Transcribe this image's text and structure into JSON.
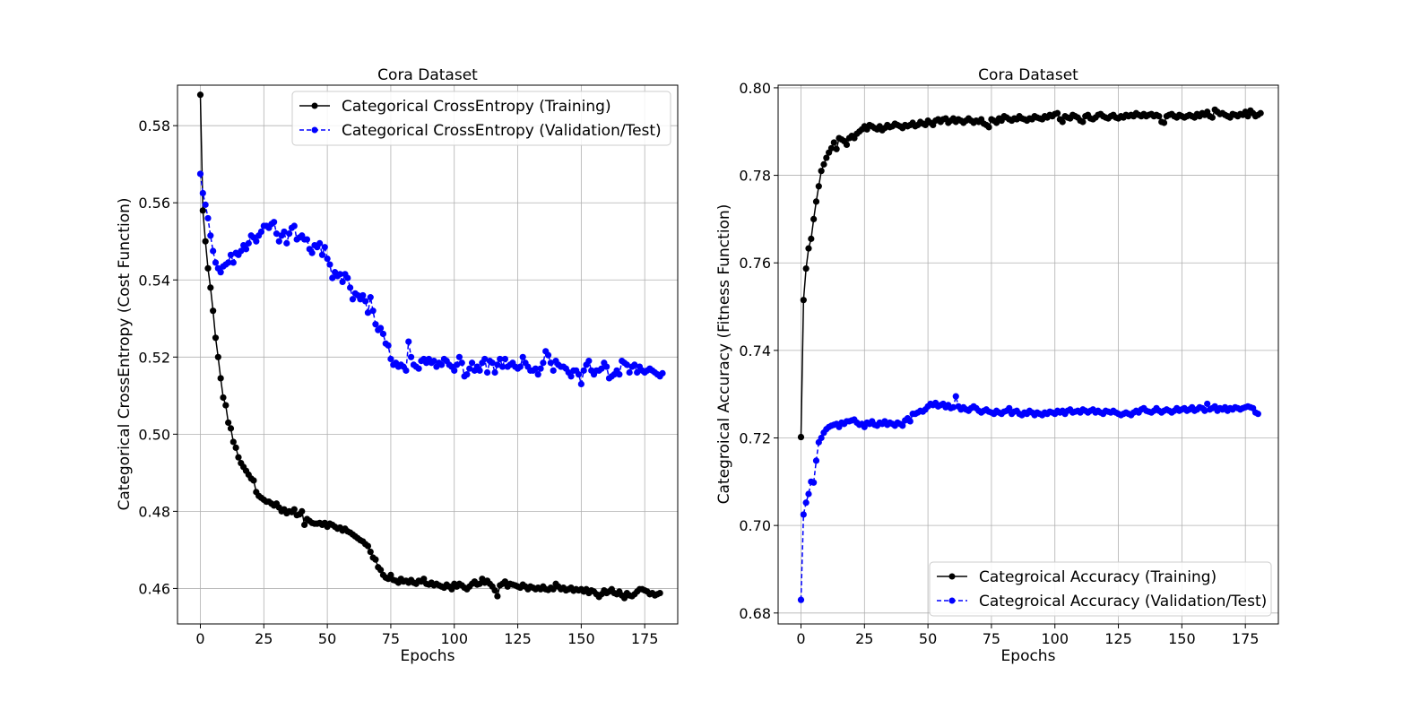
{
  "chart_data": [
    {
      "type": "line",
      "title": "Cora Dataset",
      "xlabel": "Epochs",
      "ylabel": "Categorical CrossEntropy (Cost Function)",
      "xlim": [
        -9,
        188
      ],
      "ylim": [
        0.4508,
        0.5905
      ],
      "xticks": [
        0,
        25,
        50,
        75,
        100,
        125,
        150,
        175
      ],
      "xtick_labels": [
        "0",
        "25",
        "50",
        "75",
        "100",
        "125",
        "150",
        "175"
      ],
      "yticks": [
        0.46,
        0.48,
        0.5,
        0.52,
        0.54,
        0.56,
        0.58
      ],
      "ytick_labels": [
        "0.46",
        "0.48",
        "0.50",
        "0.52",
        "0.54",
        "0.56",
        "0.58"
      ],
      "grid": true,
      "legend_position": "top-right",
      "series": [
        {
          "name": "Categorical CrossEntropy (Training)",
          "color": "#000000",
          "linestyle": "solid",
          "marker": "circle",
          "x0": 0,
          "values": [
            0.588,
            0.558,
            0.55,
            0.543,
            0.538,
            0.532,
            0.525,
            0.52,
            0.5145,
            0.5095,
            0.5075,
            0.503,
            0.5015,
            0.498,
            0.4965,
            0.494,
            0.4925,
            0.4915,
            0.4905,
            0.4895,
            0.4885,
            0.488,
            0.485,
            0.484,
            0.4835,
            0.483,
            0.4825,
            0.4825,
            0.482,
            0.4815,
            0.482,
            0.481,
            0.48,
            0.4805,
            0.4795,
            0.48,
            0.4798,
            0.4805,
            0.479,
            0.4792,
            0.48,
            0.4765,
            0.478,
            0.4775,
            0.477,
            0.4768,
            0.4768,
            0.477,
            0.4765,
            0.477,
            0.476,
            0.4768,
            0.4765,
            0.476,
            0.4755,
            0.4758,
            0.475,
            0.4755,
            0.4748,
            0.4745,
            0.474,
            0.4735,
            0.473,
            0.4725,
            0.4722,
            0.4715,
            0.471,
            0.4695,
            0.468,
            0.4675,
            0.4655,
            0.4648,
            0.4635,
            0.4628,
            0.4625,
            0.4635,
            0.4622,
            0.462,
            0.4615,
            0.4625,
            0.4618,
            0.462,
            0.4615,
            0.4622,
            0.4615,
            0.4612,
            0.462,
            0.4618,
            0.4625,
            0.4612,
            0.461,
            0.4615,
            0.4608,
            0.4612,
            0.4608,
            0.4605,
            0.4602,
            0.461,
            0.4605,
            0.4598,
            0.4612,
            0.4605,
            0.4612,
            0.4608,
            0.4602,
            0.4598,
            0.4605,
            0.4612,
            0.4618,
            0.461,
            0.4612,
            0.4625,
            0.4615,
            0.462,
            0.4612,
            0.4605,
            0.4595,
            0.458,
            0.4608,
            0.4612,
            0.4618,
            0.4605,
            0.4612,
            0.461,
            0.4608,
            0.4605,
            0.4602,
            0.461,
            0.4605,
            0.4598,
            0.4605,
            0.4602,
            0.4598,
            0.4602,
            0.4598,
            0.4605,
            0.4598,
            0.4596,
            0.4602,
            0.4598,
            0.4612,
            0.4605,
            0.4598,
            0.4602,
            0.4595,
            0.4598,
            0.4602,
            0.4594,
            0.4598,
            0.4595,
            0.4598,
            0.4592,
            0.4598,
            0.4588,
            0.4595,
            0.4592,
            0.4585,
            0.4578,
            0.4585,
            0.4595,
            0.4588,
            0.4592,
            0.4598,
            0.4588,
            0.4585,
            0.4592,
            0.4582,
            0.4575,
            0.4588,
            0.4582,
            0.458,
            0.4585,
            0.4592,
            0.4598,
            0.4598,
            0.4595,
            0.4592,
            0.4585,
            0.4588,
            0.4582,
            0.4585,
            0.4588
          ]
        },
        {
          "name": "Categorical CrossEntropy (Validation/Test)",
          "color": "#0000ff",
          "linestyle": "dashed",
          "marker": "circle",
          "x0": 0,
          "values": [
            0.5675,
            0.5625,
            0.5595,
            0.556,
            0.5515,
            0.5475,
            0.5445,
            0.543,
            0.542,
            0.5435,
            0.544,
            0.5445,
            0.5465,
            0.5445,
            0.547,
            0.5465,
            0.5475,
            0.549,
            0.548,
            0.5495,
            0.5515,
            0.551,
            0.55,
            0.5515,
            0.5525,
            0.554,
            0.554,
            0.5535,
            0.5545,
            0.555,
            0.552,
            0.55,
            0.5515,
            0.5525,
            0.5495,
            0.552,
            0.5535,
            0.554,
            0.5505,
            0.551,
            0.5515,
            0.5505,
            0.5505,
            0.548,
            0.547,
            0.549,
            0.5485,
            0.5495,
            0.5465,
            0.5485,
            0.5455,
            0.544,
            0.5405,
            0.542,
            0.541,
            0.5415,
            0.5395,
            0.5415,
            0.5405,
            0.538,
            0.535,
            0.5365,
            0.536,
            0.535,
            0.536,
            0.5345,
            0.5315,
            0.5355,
            0.532,
            0.5285,
            0.527,
            0.5275,
            0.526,
            0.5235,
            0.523,
            0.5195,
            0.518,
            0.5185,
            0.5175,
            0.518,
            0.5175,
            0.5165,
            0.524,
            0.52,
            0.518,
            0.5175,
            0.517,
            0.519,
            0.5195,
            0.5185,
            0.5195,
            0.5185,
            0.519,
            0.5175,
            0.5185,
            0.518,
            0.5195,
            0.519,
            0.518,
            0.5175,
            0.5165,
            0.518,
            0.52,
            0.5185,
            0.515,
            0.5155,
            0.517,
            0.5185,
            0.5165,
            0.5175,
            0.5165,
            0.5185,
            0.5195,
            0.516,
            0.519,
            0.5185,
            0.516,
            0.518,
            0.5195,
            0.5175,
            0.5195,
            0.5175,
            0.518,
            0.5185,
            0.5175,
            0.517,
            0.5175,
            0.52,
            0.5185,
            0.5175,
            0.5165,
            0.5165,
            0.517,
            0.5155,
            0.517,
            0.5185,
            0.5215,
            0.5205,
            0.5185,
            0.5165,
            0.519,
            0.518,
            0.5175,
            0.5175,
            0.517,
            0.516,
            0.515,
            0.5165,
            0.5165,
            0.5155,
            0.513,
            0.5165,
            0.518,
            0.519,
            0.5165,
            0.5155,
            0.5165,
            0.5165,
            0.517,
            0.5185,
            0.5175,
            0.5145,
            0.515,
            0.5155,
            0.5165,
            0.5155,
            0.519,
            0.5185,
            0.518,
            0.516,
            0.5175,
            0.518,
            0.516,
            0.5175,
            0.5165,
            0.516,
            0.5165,
            0.517,
            0.5165,
            0.516,
            0.5155,
            0.515,
            0.5158
          ]
        }
      ]
    },
    {
      "type": "line",
      "title": "Cora Dataset",
      "xlabel": "Epochs",
      "ylabel": "Categroical Accuracy (Fitness Function)",
      "xlim": [
        -9,
        188
      ],
      "ylim": [
        0.6775,
        0.8006
      ],
      "xticks": [
        0,
        25,
        50,
        75,
        100,
        125,
        150,
        175
      ],
      "xtick_labels": [
        "0",
        "25",
        "50",
        "75",
        "100",
        "125",
        "150",
        "175"
      ],
      "yticks": [
        0.68,
        0.7,
        0.72,
        0.74,
        0.76,
        0.78,
        0.8
      ],
      "ytick_labels": [
        "0.68",
        "0.70",
        "0.72",
        "0.74",
        "0.76",
        "0.78",
        "0.80"
      ],
      "grid": true,
      "legend_position": "bottom-right",
      "series": [
        {
          "name": "Categroical Accuracy (Training)",
          "color": "#000000",
          "linestyle": "solid",
          "marker": "circle",
          "x0": 0,
          "values": [
            0.7202,
            0.7515,
            0.7587,
            0.7633,
            0.7655,
            0.77,
            0.774,
            0.7775,
            0.781,
            0.7825,
            0.784,
            0.7852,
            0.7862,
            0.7875,
            0.786,
            0.7885,
            0.7882,
            0.7878,
            0.787,
            0.7885,
            0.789,
            0.7885,
            0.7895,
            0.79,
            0.7905,
            0.7912,
            0.7905,
            0.7915,
            0.7912,
            0.7908,
            0.7905,
            0.7912,
            0.7903,
            0.7908,
            0.7915,
            0.791,
            0.7912,
            0.7918,
            0.7915,
            0.7912,
            0.7908,
            0.7915,
            0.7912,
            0.7915,
            0.792,
            0.7912,
            0.7915,
            0.7922,
            0.7918,
            0.7915,
            0.7925,
            0.792,
            0.7915,
            0.7925,
            0.7928,
            0.7922,
            0.7928,
            0.793,
            0.792,
            0.7925,
            0.793,
            0.7922,
            0.7928,
            0.7925,
            0.792,
            0.7925,
            0.793,
            0.7925,
            0.792,
            0.7925,
            0.7922,
            0.7928,
            0.7918,
            0.7915,
            0.791,
            0.7928,
            0.7925,
            0.792,
            0.793,
            0.7925,
            0.7935,
            0.7932,
            0.7928,
            0.7925,
            0.793,
            0.7928,
            0.7935,
            0.793,
            0.7928,
            0.7925,
            0.793,
            0.7928,
            0.7935,
            0.7932,
            0.793,
            0.7928,
            0.7935,
            0.7932,
            0.7938,
            0.7935,
            0.794,
            0.7942,
            0.7928,
            0.7922,
            0.7935,
            0.7932,
            0.793,
            0.7938,
            0.7935,
            0.7932,
            0.7925,
            0.7922,
            0.7935,
            0.7938,
            0.793,
            0.7928,
            0.7932,
            0.7938,
            0.794,
            0.7935,
            0.7932,
            0.793,
            0.7935,
            0.7938,
            0.7932,
            0.793,
            0.7935,
            0.7932,
            0.7938,
            0.7935,
            0.7938,
            0.7935,
            0.7942,
            0.7938,
            0.7935,
            0.794,
            0.7935,
            0.7938,
            0.794,
            0.7935,
            0.7938,
            0.7935,
            0.7922,
            0.792,
            0.7935,
            0.7938,
            0.794,
            0.7935,
            0.7932,
            0.7938,
            0.7935,
            0.7932,
            0.7935,
            0.7938,
            0.7935,
            0.7932,
            0.794,
            0.7935,
            0.7942,
            0.7938,
            0.7945,
            0.7935,
            0.7932,
            0.795,
            0.7945,
            0.794,
            0.7942,
            0.7938,
            0.7935,
            0.7932,
            0.794,
            0.7938,
            0.7935,
            0.794,
            0.7938,
            0.7945,
            0.7935,
            0.7948,
            0.7942,
            0.7935,
            0.7938,
            0.7942
          ]
        },
        {
          "name": "Categroical Accuracy (Validation/Test)",
          "color": "#0000ff",
          "linestyle": "dashed",
          "marker": "circle",
          "x0": 0,
          "values": [
            0.683,
            0.7025,
            0.7052,
            0.7072,
            0.71,
            0.7098,
            0.7148,
            0.719,
            0.72,
            0.7212,
            0.722,
            0.7225,
            0.7228,
            0.723,
            0.7232,
            0.7225,
            0.7235,
            0.7232,
            0.7238,
            0.7238,
            0.724,
            0.7242,
            0.7235,
            0.723,
            0.7232,
            0.7225,
            0.7235,
            0.7232,
            0.7238,
            0.723,
            0.7228,
            0.7235,
            0.7232,
            0.7238,
            0.723,
            0.7235,
            0.7232,
            0.7228,
            0.7235,
            0.7232,
            0.7228,
            0.724,
            0.7245,
            0.7238,
            0.7255,
            0.7255,
            0.7258,
            0.7262,
            0.726,
            0.7265,
            0.7272,
            0.7278,
            0.7275,
            0.728,
            0.7272,
            0.7275,
            0.7278,
            0.727,
            0.7275,
            0.7268,
            0.727,
            0.7295,
            0.7272,
            0.7265,
            0.727,
            0.7265,
            0.7262,
            0.7268,
            0.7272,
            0.7268,
            0.7262,
            0.7258,
            0.7262,
            0.7265,
            0.726,
            0.7258,
            0.7255,
            0.7262,
            0.7258,
            0.7255,
            0.726,
            0.7262,
            0.7268,
            0.7255,
            0.726,
            0.7262,
            0.7255,
            0.7252,
            0.7258,
            0.7255,
            0.7262,
            0.7258,
            0.7252,
            0.7258,
            0.7255,
            0.7252,
            0.7258,
            0.7255,
            0.726,
            0.7258,
            0.7255,
            0.7262,
            0.7258,
            0.7262,
            0.7255,
            0.7262,
            0.7265,
            0.7258,
            0.726,
            0.7262,
            0.7258,
            0.7265,
            0.7262,
            0.7258,
            0.7262,
            0.7265,
            0.7258,
            0.7262,
            0.7258,
            0.7255,
            0.7262,
            0.726,
            0.7258,
            0.7262,
            0.7258,
            0.7255,
            0.7252,
            0.7255,
            0.7258,
            0.7255,
            0.7252,
            0.7258,
            0.7262,
            0.7258,
            0.7265,
            0.7268,
            0.7262,
            0.726,
            0.7258,
            0.7262,
            0.7268,
            0.7262,
            0.7258,
            0.7262,
            0.7265,
            0.7262,
            0.7258,
            0.7262,
            0.7268,
            0.7262,
            0.7265,
            0.7268,
            0.7262,
            0.7265,
            0.727,
            0.7262,
            0.7265,
            0.727,
            0.7268,
            0.7262,
            0.7278,
            0.7265,
            0.7268,
            0.7272,
            0.7262,
            0.7268,
            0.7265,
            0.727,
            0.7262,
            0.7268,
            0.7265,
            0.727,
            0.7268,
            0.7265,
            0.7268,
            0.727,
            0.7272,
            0.727,
            0.7268,
            0.7258,
            0.7255
          ]
        }
      ]
    }
  ]
}
